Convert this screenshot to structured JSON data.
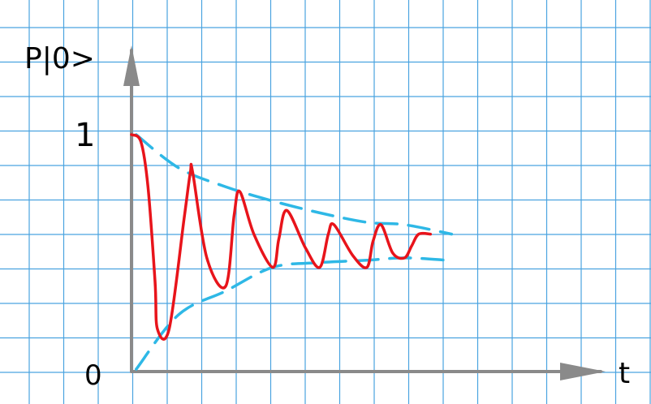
{
  "chart_data": {
    "type": "line",
    "title": "",
    "ylabel": "P|0>",
    "xlabel": "t",
    "ytick_labels": [
      "1",
      "0"
    ],
    "ylim": [
      0,
      1
    ],
    "xlim": [
      0,
      1
    ],
    "grid": true,
    "colors": {
      "grid": "#4aa3e0",
      "axis": "#8a8a8a",
      "signal": "#e8141b",
      "envelope": "#2eb8e6"
    },
    "series": [
      {
        "role": "signal",
        "x": [
          0,
          0.02,
          0.035,
          0.05,
          0.055,
          0.08,
          0.112,
          0.125,
          0.13,
          0.16,
          0.2,
          0.218,
          0.23,
          0.26,
          0.3,
          0.313,
          0.33,
          0.37,
          0.4,
          0.418,
          0.43,
          0.47,
          0.5,
          0.513,
          0.53,
          0.555,
          0.58,
          0.595,
          0.61,
          0.635
        ],
        "y": [
          1.0,
          0.97,
          0.78,
          0.38,
          0.18,
          0.18,
          0.65,
          0.84,
          0.84,
          0.48,
          0.36,
          0.66,
          0.76,
          0.58,
          0.44,
          0.56,
          0.68,
          0.52,
          0.44,
          0.58,
          0.62,
          0.49,
          0.44,
          0.55,
          0.62,
          0.5,
          0.48,
          0.53,
          0.58,
          0.58
        ]
      },
      {
        "role": "upper-envelope",
        "x": [
          0.01,
          0.1,
          0.2,
          0.3,
          0.4,
          0.5,
          0.58,
          0.68
        ],
        "y": [
          1.0,
          0.86,
          0.78,
          0.72,
          0.67,
          0.63,
          0.62,
          0.58
        ]
      },
      {
        "role": "lower-envelope",
        "x": [
          0.01,
          0.1,
          0.2,
          0.3,
          0.4,
          0.5,
          0.58,
          0.67
        ],
        "y": [
          0.01,
          0.24,
          0.34,
          0.44,
          0.46,
          0.47,
          0.48,
          0.47
        ]
      }
    ]
  }
}
